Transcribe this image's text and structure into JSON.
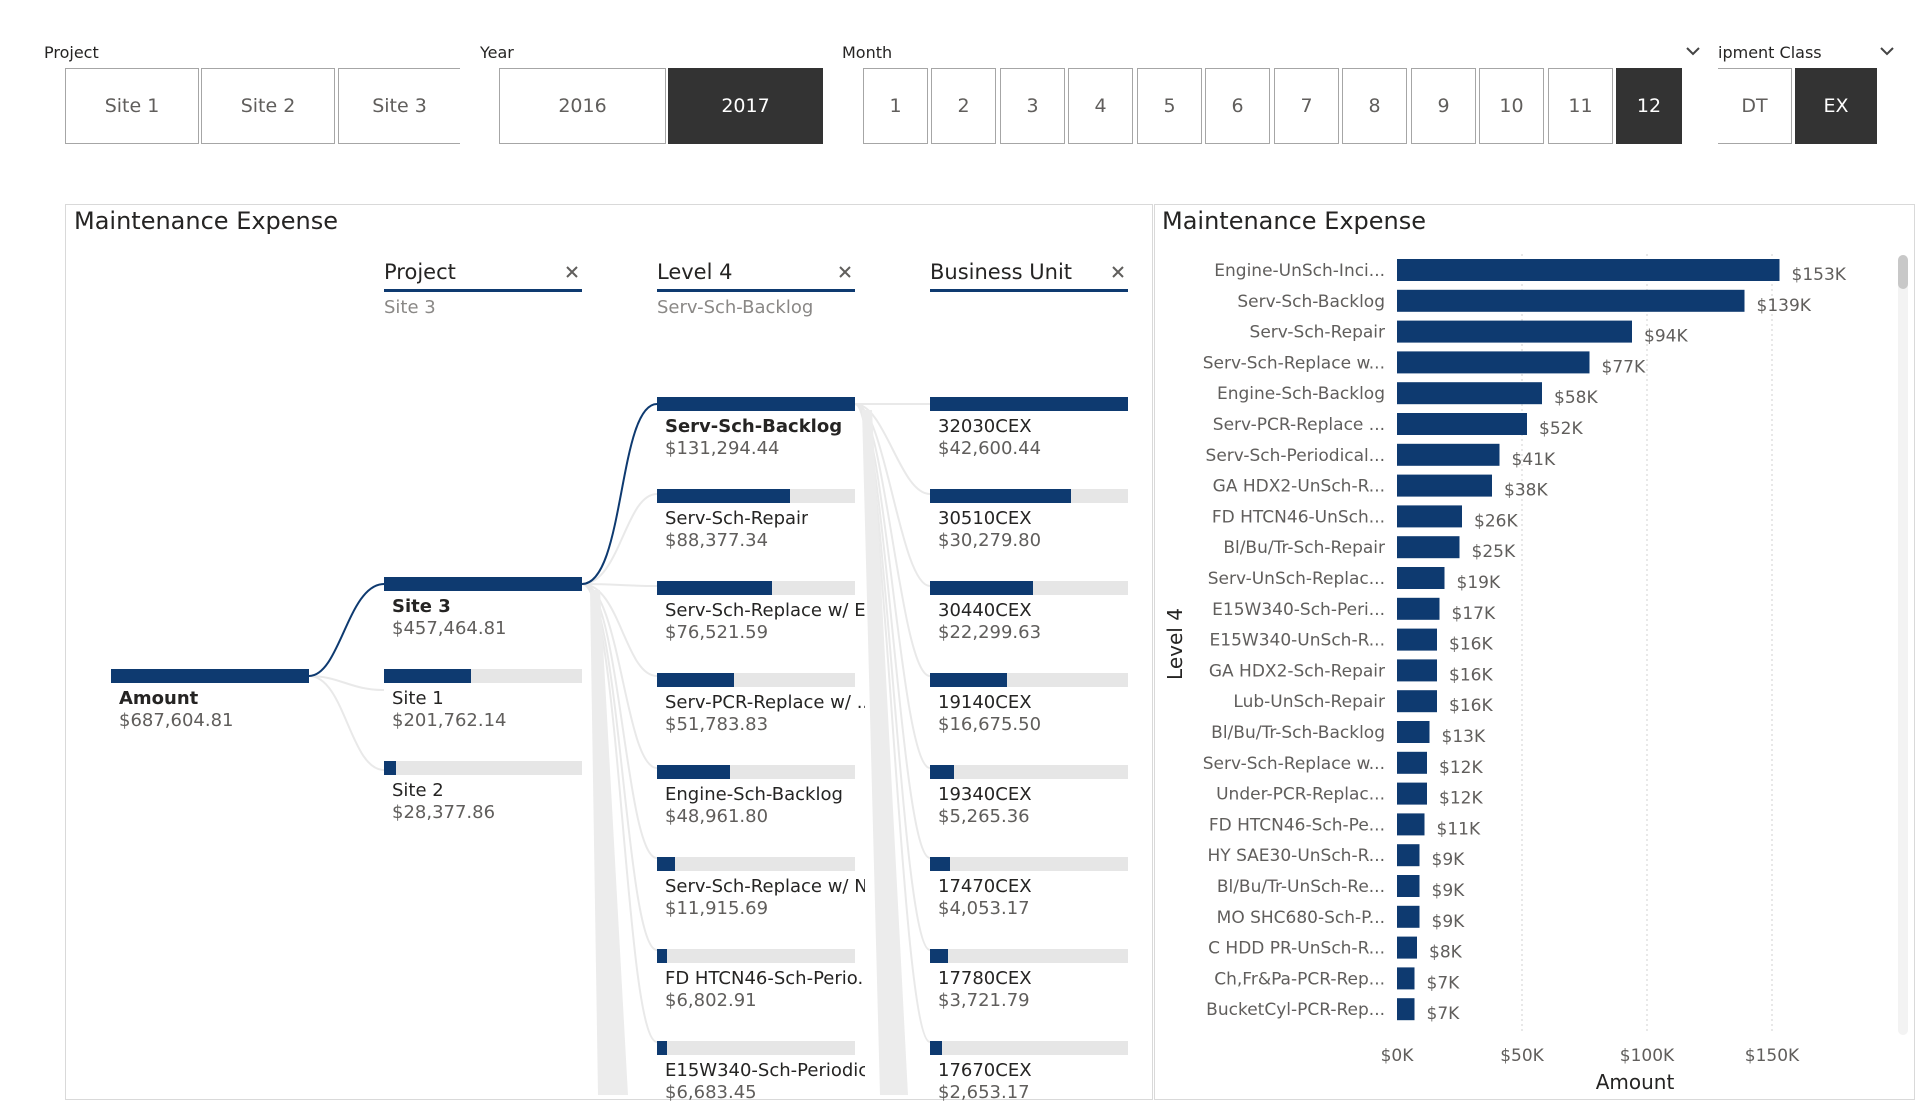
{
  "slicers": {
    "project": {
      "title": "Project",
      "items": [
        {
          "label": "Site 1",
          "selected": false
        },
        {
          "label": "Site 2",
          "selected": false
        },
        {
          "label": "Site 3",
          "selected": false
        }
      ]
    },
    "year": {
      "title": "Year",
      "items": [
        {
          "label": "2016",
          "selected": false
        },
        {
          "label": "2017",
          "selected": true
        }
      ]
    },
    "month": {
      "title": "Month",
      "items": [
        {
          "label": "1",
          "selected": false
        },
        {
          "label": "2",
          "selected": false
        },
        {
          "label": "3",
          "selected": false
        },
        {
          "label": "4",
          "selected": false
        },
        {
          "label": "5",
          "selected": false
        },
        {
          "label": "6",
          "selected": false
        },
        {
          "label": "7",
          "selected": false
        },
        {
          "label": "8",
          "selected": false
        },
        {
          "label": "9",
          "selected": false
        },
        {
          "label": "10",
          "selected": false
        },
        {
          "label": "11",
          "selected": false
        },
        {
          "label": "12",
          "selected": true
        }
      ]
    },
    "equipment_class": {
      "title": "ipment Class",
      "items": [
        {
          "label": "DT",
          "selected": false
        },
        {
          "label": "EX",
          "selected": true
        }
      ]
    }
  },
  "tree": {
    "title": "Maintenance Expense",
    "root": {
      "label": "Amount",
      "value": "$687,604.81"
    },
    "levels": [
      {
        "header": "Project",
        "filter": "Site 3"
      },
      {
        "header": "Level 4",
        "filter": "Serv-Sch-Backlog"
      },
      {
        "header": "Business Unit",
        "filter": ""
      }
    ],
    "project_nodes": [
      {
        "label": "Site 3",
        "value": "$457,464.81",
        "fill": 1.0,
        "selected": true
      },
      {
        "label": "Site 1",
        "value": "$201,762.14",
        "fill": 0.44,
        "selected": false
      },
      {
        "label": "Site 2",
        "value": "$28,377.86",
        "fill": 0.06,
        "selected": false
      }
    ],
    "level4_nodes": [
      {
        "label": "Serv-Sch-Backlog",
        "value": "$131,294.44",
        "fill": 1.0,
        "selected": true
      },
      {
        "label": "Serv-Sch-Repair",
        "value": "$88,377.34",
        "fill": 0.67,
        "selected": false
      },
      {
        "label": "Serv-Sch-Replace w/ E...",
        "value": "$76,521.59",
        "fill": 0.58,
        "selected": false
      },
      {
        "label": "Serv-PCR-Replace w/ ...",
        "value": "$51,783.83",
        "fill": 0.39,
        "selected": false
      },
      {
        "label": "Engine-Sch-Backlog",
        "value": "$48,961.80",
        "fill": 0.37,
        "selected": false
      },
      {
        "label": "Serv-Sch-Replace w/ N...",
        "value": "$11,915.69",
        "fill": 0.09,
        "selected": false
      },
      {
        "label": "FD HTCN46-Sch-Perio...",
        "value": "$6,802.91",
        "fill": 0.05,
        "selected": false
      },
      {
        "label": "E15W340-Sch-Periodic...",
        "value": "$6,683.45",
        "fill": 0.05,
        "selected": false
      }
    ],
    "bu_nodes": [
      {
        "label": "32030CEX",
        "value": "$42,600.44",
        "fill": 1.0
      },
      {
        "label": "30510CEX",
        "value": "$30,279.80",
        "fill": 0.71
      },
      {
        "label": "30440CEX",
        "value": "$22,299.63",
        "fill": 0.52
      },
      {
        "label": "19140CEX",
        "value": "$16,675.50",
        "fill": 0.39
      },
      {
        "label": "19340CEX",
        "value": "$5,265.36",
        "fill": 0.12
      },
      {
        "label": "17470CEX",
        "value": "$4,053.17",
        "fill": 0.1
      },
      {
        "label": "17780CEX",
        "value": "$3,721.79",
        "fill": 0.09
      },
      {
        "label": "17670CEX",
        "value": "$2,653.17",
        "fill": 0.06
      }
    ]
  },
  "bar_chart": {
    "title": "Maintenance Expense"
  },
  "chart_data": {
    "type": "bar",
    "orientation": "horizontal",
    "title": "Maintenance Expense",
    "xlabel": "Amount",
    "ylabel": "Level 4",
    "xlim": [
      0,
      175000
    ],
    "xticks": [
      {
        "v": 0,
        "label": "$0K"
      },
      {
        "v": 50000,
        "label": "$50K"
      },
      {
        "v": 100000,
        "label": "$100K"
      },
      {
        "v": 150000,
        "label": "$150K"
      }
    ],
    "categories": [
      "Engine-UnSch-Inci...",
      "Serv-Sch-Backlog",
      "Serv-Sch-Repair",
      "Serv-Sch-Replace w...",
      "Engine-Sch-Backlog",
      "Serv-PCR-Replace ...",
      "Serv-Sch-Periodical...",
      "GA HDX2-UnSch-R...",
      "FD HTCN46-UnSch...",
      "Bl/Bu/Tr-Sch-Repair",
      "Serv-UnSch-Replac...",
      "E15W340-Sch-Peri...",
      "E15W340-UnSch-R...",
      "GA HDX2-Sch-Repair",
      "Lub-UnSch-Repair",
      "Bl/Bu/Tr-Sch-Backlog",
      "Serv-Sch-Replace w...",
      "Under-PCR-Replac...",
      "FD HTCN46-Sch-Pe...",
      "HY SAE30-UnSch-R...",
      "Bl/Bu/Tr-UnSch-Re...",
      "MO SHC680-Sch-P...",
      "C HDD PR-UnSch-R...",
      "Ch,Fr&Pa-PCR-Rep...",
      "BucketCyl-PCR-Rep..."
    ],
    "values": [
      153000,
      139000,
      94000,
      77000,
      58000,
      52000,
      41000,
      38000,
      26000,
      25000,
      19000,
      17000,
      16000,
      16000,
      16000,
      13000,
      12000,
      12000,
      11000,
      9000,
      9000,
      9000,
      8000,
      7000,
      7000
    ],
    "data_labels": [
      "$153K",
      "$139K",
      "$94K",
      "$77K",
      "$58K",
      "$52K",
      "$41K",
      "$38K",
      "$26K",
      "$25K",
      "$19K",
      "$17K",
      "$16K",
      "$16K",
      "$16K",
      "$13K",
      "$12K",
      "$12K",
      "$11K",
      "$9K",
      "$9K",
      "$9K",
      "$8K",
      "$7K",
      "$7K"
    ],
    "bar_color": "#0e3a70"
  }
}
